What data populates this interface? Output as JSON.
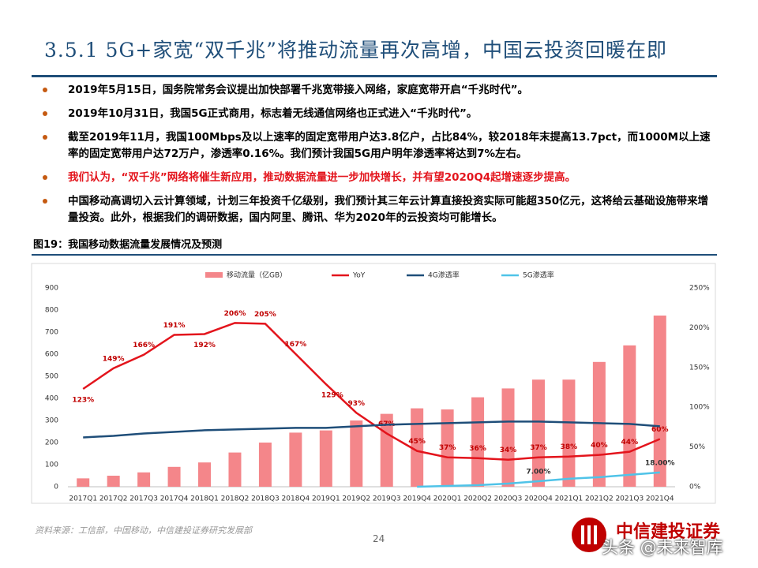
{
  "header": {
    "title": "3.5.1 5G+家宽“双千兆”将推动流量再次高增，中国云投资回暖在即"
  },
  "bullets": [
    {
      "text": "2019年5月15日，国务院常务会议提出加快部署千兆宽带接入网络，家庭宽带开启“千兆时代”。",
      "color": "#000000"
    },
    {
      "text": "2019年10月31日，我国5G正式商用，标志着无线通信网络也正式进入“千兆时代”。",
      "color": "#000000"
    },
    {
      "text": "截至2019年11月，我国100Mbps及以上速率的固定宽带用户达3.8亿户，占比84%，较2018年末提高13.7pct，而1000M以上速率的固定宽带用户达72万户，渗透率0.16%。我们预计我国5G用户明年渗透率将达到7%左右。",
      "color": "#000000"
    },
    {
      "text": "我们认为，“双千兆”网络将催生新应用，推动数据流量进一步加快增长，并有望2020Q4起增速逐步提高。",
      "color": "#e3141c"
    },
    {
      "text": "中国移动高调切入云计算领域，计划三年投资千亿级别，我们预计其三年云计算直接投资实际可能超350亿元，这将给云基础设施带来增量投资。此外，根据我们的调研数据，国内阿里、腾讯、华为2020年的云投资均可能增长。",
      "color": "#000000"
    }
  ],
  "figure_caption": "图19：我国移动数据流量发展情况及预测",
  "chart_data": {
    "type": "combo",
    "categories": [
      "2017Q1",
      "2017Q2",
      "2017Q3",
      "2017Q4",
      "2018Q1",
      "2018Q2",
      "2018Q3",
      "2018Q4",
      "2019Q1",
      "2019Q2",
      "2019Q3",
      "2019Q4",
      "2020Q1",
      "2020Q2",
      "2020Q3",
      "2020Q4",
      "2021Q1",
      "2021Q2",
      "2021Q3",
      "2021Q4"
    ],
    "series": [
      {
        "name": "移动流量（亿GB）",
        "type": "bar",
        "color": "#f4868a",
        "axis": "y",
        "values": [
          38,
          50,
          65,
          90,
          110,
          155,
          200,
          245,
          255,
          300,
          330,
          355,
          350,
          405,
          445,
          485,
          485,
          565,
          640,
          775
        ]
      },
      {
        "name": "YoY",
        "type": "line",
        "color": "#e3141c",
        "axis": "y2",
        "values": [
          123,
          149,
          166,
          191,
          192,
          206,
          205,
          167,
          129,
          93,
          67,
          45,
          37,
          36,
          34,
          37,
          38,
          40,
          44,
          60
        ],
        "value_labels": [
          "123%",
          "149%",
          "166%",
          "191%",
          "192%",
          "206%",
          "205%",
          "167%",
          "129%",
          "93%",
          "67%",
          "45%",
          "37%",
          "36%",
          "34%",
          "37%",
          "38%",
          "40%",
          "44%",
          "60%"
        ]
      },
      {
        "name": "4G渗透率",
        "type": "line",
        "color": "#1f4e79",
        "axis": "y2",
        "values": [
          62,
          64,
          67,
          69,
          71,
          72,
          73,
          74,
          74,
          76,
          78,
          79,
          80,
          81,
          82,
          82,
          81,
          80,
          79,
          76
        ]
      },
      {
        "name": "5G渗透率",
        "type": "line",
        "color": "#4fc3e8",
        "axis": "y2",
        "values": [
          null,
          null,
          null,
          null,
          null,
          null,
          null,
          null,
          null,
          null,
          null,
          0,
          1,
          2,
          4,
          7,
          10,
          12,
          15,
          18
        ],
        "value_labels": [
          null,
          null,
          null,
          null,
          null,
          null,
          null,
          null,
          null,
          null,
          null,
          null,
          null,
          null,
          null,
          "7.00%",
          null,
          null,
          null,
          "18.00%"
        ]
      }
    ],
    "ylim": [
      0,
      900
    ],
    "yticks": [
      0,
      100,
      200,
      300,
      400,
      500,
      600,
      700,
      800,
      900
    ],
    "y2lim": [
      0,
      250
    ],
    "y2ticks": [
      {
        "value": 0,
        "label": "0%"
      },
      {
        "value": 50,
        "label": "50%"
      },
      {
        "value": 100,
        "label": "100%"
      },
      {
        "value": 150,
        "label": "150%"
      },
      {
        "value": 200,
        "label": "200%"
      },
      {
        "value": 250,
        "label": "250%"
      }
    ],
    "legend": "top"
  },
  "footer": {
    "source": "资料来源：工信部，中国移动，中信建投证券研究发展部",
    "page": "24",
    "logo": "中信建投证券",
    "watermark": "头条 @未来智库"
  }
}
